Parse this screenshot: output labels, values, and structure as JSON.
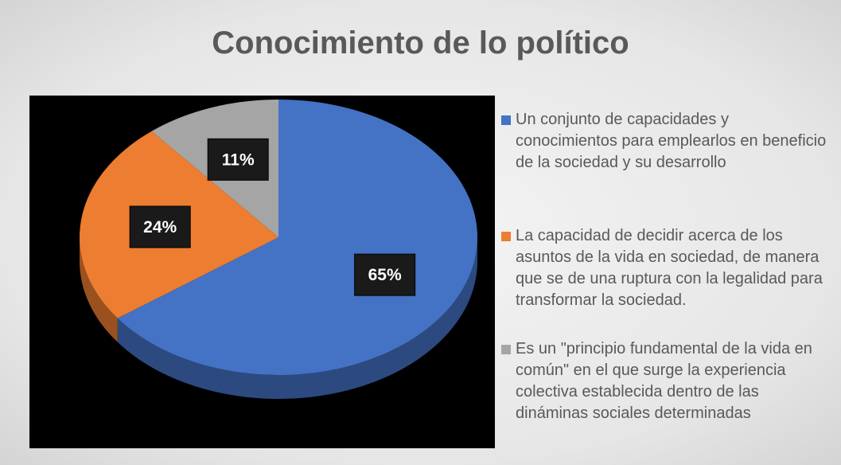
{
  "chart_data": {
    "type": "pie",
    "title": "Conocimiento de lo político",
    "categories": [
      "Un conjunto de capacidades y conocimientos para emplearlos en beneficio de la sociedad y su desarrollo",
      "La capacidad de decidir acerca de los asuntos de la vida en sociedad, de manera que se de una ruptura con la legalidad para transformar la sociedad.",
      "Es un \"principio fundamental de la vida en común\" en el que surge la experiencia colectiva establecida dentro de las dináminas sociales determinadas"
    ],
    "values": [
      65,
      24,
      11
    ],
    "value_labels": [
      "65%",
      "24%",
      "11%"
    ],
    "colors": [
      "#4472c4",
      "#ed7d31",
      "#a5a5a5"
    ],
    "legend": "right"
  }
}
